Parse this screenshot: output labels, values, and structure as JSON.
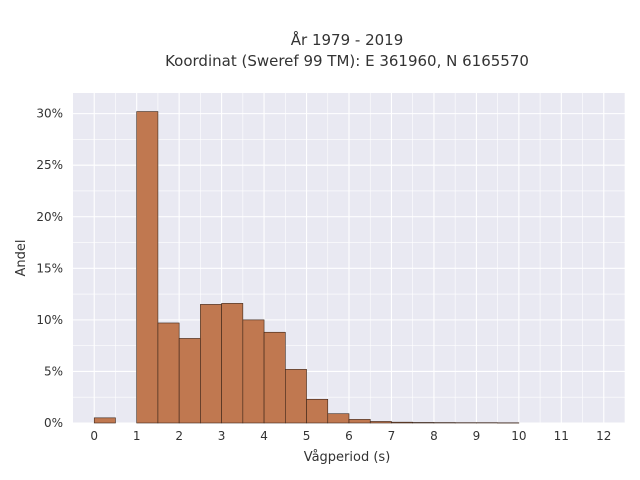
{
  "chart_data": {
    "type": "bar",
    "title_line1": "År 1979 - 2019",
    "title_line2": "Koordinat (Sweref 99 TM): E 361960, N 6165570",
    "xlabel": "Vågperiod (s)",
    "ylabel": "Andel",
    "bin_width": 0.5,
    "x": [
      0,
      1,
      1.5,
      2,
      2.5,
      3,
      3.5,
      4,
      4.5,
      5,
      5.5,
      6,
      6.5,
      7,
      7.5,
      8,
      8.5,
      9,
      9.5
    ],
    "values": [
      0.5,
      30.2,
      9.7,
      8.2,
      11.5,
      11.6,
      10.0,
      8.8,
      5.2,
      2.3,
      0.9,
      0.35,
      0.15,
      0.08,
      0.05,
      0.04,
      0.03,
      0.03,
      0.02
    ],
    "xlim": [
      -0.5,
      12.5
    ],
    "ylim": [
      0,
      32
    ],
    "x_ticks": [
      0,
      1,
      2,
      3,
      4,
      5,
      6,
      7,
      8,
      9,
      10,
      11,
      12
    ],
    "y_ticks": [
      0,
      5,
      10,
      15,
      20,
      25,
      30
    ],
    "y_tick_suffix": "%",
    "grid": true,
    "colors": {
      "bar": "#c07850",
      "bar_edge": "#3a2418",
      "plot_bg": "#e9e9f2",
      "grid": "#ffffff"
    }
  }
}
